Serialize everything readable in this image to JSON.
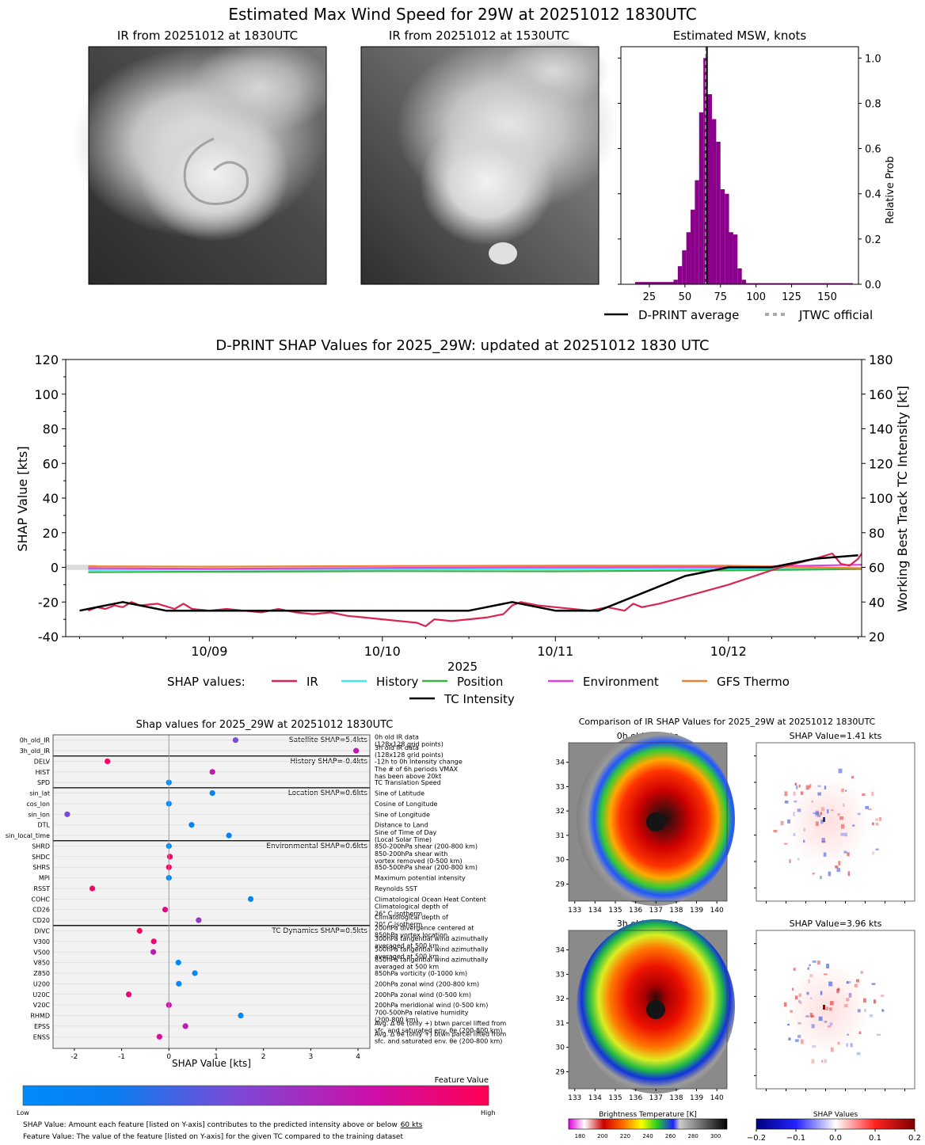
{
  "page_title": "Estimated Max Wind Speed for 29W at 20251012 1830UTC",
  "panels": {
    "ir_current_title": "IR from 20251012 at 1830UTC",
    "ir_previous_title": "IR from 20251012 at 1530UTC"
  },
  "colors": {
    "hist_bar": "#8B008B",
    "ir": "#DC2350",
    "history": "#40E8F0",
    "position": "#3CB044",
    "environment": "#E040E0",
    "gfs_thermo": "#F08030",
    "tc_intensity": "#000000",
    "jtwc": "#AAAAAA"
  },
  "chart_data": [
    {
      "type": "bar",
      "title": "Estimated MSW, knots",
      "xlabel": "",
      "ylabel": "Relative Prob",
      "xlim": [
        5,
        172
      ],
      "ylim": [
        0,
        1.05
      ],
      "xticks": [
        "25",
        "50",
        "75",
        "100",
        "125",
        "150"
      ],
      "yticks": [
        "0.0",
        "0.2",
        "0.4",
        "0.6",
        "0.8",
        "1.0"
      ],
      "bins": [
        {
          "x0": 15,
          "x1": 42,
          "v": 0.01
        },
        {
          "x0": 42,
          "x1": 45,
          "v": 0.02
        },
        {
          "x0": 45,
          "x1": 48,
          "v": 0.08
        },
        {
          "x0": 48,
          "x1": 51,
          "v": 0.15
        },
        {
          "x0": 51,
          "x1": 54,
          "v": 0.23
        },
        {
          "x0": 54,
          "x1": 57,
          "v": 0.33
        },
        {
          "x0": 57,
          "x1": 60,
          "v": 0.46
        },
        {
          "x0": 60,
          "x1": 63,
          "v": 0.76
        },
        {
          "x0": 63,
          "x1": 66,
          "v": 1.0
        },
        {
          "x0": 66,
          "x1": 69,
          "v": 0.84
        },
        {
          "x0": 69,
          "x1": 72,
          "v": 0.73
        },
        {
          "x0": 72,
          "x1": 75,
          "v": 0.63
        },
        {
          "x0": 75,
          "x1": 78,
          "v": 0.42
        },
        {
          "x0": 78,
          "x1": 81,
          "v": 0.4
        },
        {
          "x0": 81,
          "x1": 84,
          "v": 0.23
        },
        {
          "x0": 84,
          "x1": 87,
          "v": 0.22
        },
        {
          "x0": 87,
          "x1": 90,
          "v": 0.07
        },
        {
          "x0": 90,
          "x1": 93,
          "v": 0.02
        },
        {
          "x0": 93,
          "x1": 168,
          "v": 0.005
        }
      ],
      "dprint_average": 65.5,
      "jtwc_official": 65,
      "legend": [
        "D-PRINT average",
        "JTWC official"
      ]
    },
    {
      "type": "line",
      "title": "D-PRINT SHAP Values for 2025_29W: updated at 20251012 1830 UTC",
      "xlabel": "2025",
      "ylabel": "SHAP Value [kts]",
      "y2label": "Working Best Track TC Intensity [kt]",
      "xlim": [
        8.17,
        12.77
      ],
      "ylim": [
        -40,
        120
      ],
      "y2lim": [
        20,
        180
      ],
      "xticks": [
        {
          "v": 9,
          "label": "10/09"
        },
        {
          "v": 10,
          "label": "10/10"
        },
        {
          "v": 11,
          "label": "10/11"
        },
        {
          "v": 12,
          "label": "10/12"
        }
      ],
      "yticks": [
        "-40",
        "-20",
        "0",
        "20",
        "40",
        "60",
        "80",
        "100",
        "120"
      ],
      "y2ticks": [
        "20",
        "40",
        "60",
        "80",
        "100",
        "120",
        "140",
        "160",
        "180"
      ],
      "legend_prefix": "SHAP values:",
      "legend": [
        "IR",
        "History",
        "Position",
        "Environment",
        "GFS Thermo",
        "TC Intensity"
      ],
      "series": [
        {
          "name": "IR",
          "x": [
            8.3,
            8.35,
            8.4,
            8.45,
            8.5,
            8.55,
            8.6,
            8.7,
            8.8,
            8.85,
            8.9,
            9.0,
            9.1,
            9.2,
            9.3,
            9.4,
            9.5,
            9.6,
            9.7,
            9.8,
            9.9,
            10.0,
            10.1,
            10.2,
            10.25,
            10.3,
            10.4,
            10.5,
            10.6,
            10.7,
            10.75,
            10.8,
            10.9,
            11.0,
            11.1,
            11.2,
            11.3,
            11.4,
            11.45,
            11.5,
            11.55,
            11.6,
            12.0,
            12.3,
            12.5,
            12.6,
            12.65,
            12.7,
            12.75,
            12.77
          ],
          "y": [
            -25,
            -23,
            -24,
            -22,
            -23,
            -20,
            -22,
            -21,
            -24,
            -21,
            -24,
            -25,
            -24,
            -25,
            -26,
            -24,
            -26,
            -27,
            -26,
            -28,
            -29,
            -30,
            -31,
            -32,
            -34,
            -30,
            -31,
            -30,
            -29,
            -27,
            -22,
            -20,
            -22,
            -23,
            -24,
            -25,
            -23,
            -25,
            -21,
            -23,
            -22,
            -21,
            -10,
            0,
            5,
            8,
            2,
            1,
            5,
            8
          ]
        },
        {
          "name": "History",
          "x": [
            8.3,
            9.0,
            10.0,
            11.0,
            12.0,
            12.77
          ],
          "y": [
            -1.5,
            -1.3,
            -1.2,
            -1.0,
            -0.8,
            -0.5
          ]
        },
        {
          "name": "Position",
          "x": [
            8.3,
            9.0,
            10.0,
            11.0,
            12.0,
            12.77
          ],
          "y": [
            -2.8,
            -2.5,
            -2.2,
            -2.3,
            -1.8,
            -1.0
          ]
        },
        {
          "name": "Environment",
          "x": [
            8.3,
            9.0,
            10.0,
            11.0,
            12.0,
            12.77
          ],
          "y": [
            -0.5,
            -0.8,
            -0.3,
            0.0,
            0.2,
            1.5
          ]
        },
        {
          "name": "GFS Thermo",
          "x": [
            8.3,
            9.0,
            10.0,
            11.0,
            12.0,
            12.77
          ],
          "y": [
            0.6,
            0.4,
            0.8,
            1.0,
            1.0,
            -0.5
          ]
        },
        {
          "name": "TC Intensity",
          "axis": "right",
          "x": [
            8.25,
            8.5,
            8.75,
            9.0,
            9.5,
            10.0,
            10.5,
            10.75,
            11.0,
            11.25,
            11.5,
            11.75,
            12.0,
            12.25,
            12.5,
            12.75
          ],
          "y": [
            35,
            40,
            35,
            35,
            35,
            35,
            35,
            40,
            35,
            35,
            45,
            55,
            60,
            60,
            65,
            67
          ]
        }
      ]
    },
    {
      "type": "scatter",
      "title": "Shap values for 2025_29W at 20251012 1830UTC",
      "xlabel": "SHAP Value [kts]",
      "xlim": [
        -2.45,
        4.25
      ],
      "xticks": [
        "-2",
        "-1",
        "0",
        "1",
        "2",
        "3",
        "4"
      ],
      "groups": [
        {
          "label": "Satellite SHAP=5.4kts",
          "features": [
            {
              "name": "0h_old_IR",
              "shap": 1.41,
              "val": 0.45,
              "desc": "0h old IR data",
              "desc2": "(128x128 grid points)"
            },
            {
              "name": "3h_old_IR",
              "shap": 3.96,
              "val": 0.7,
              "desc": "3h old IR data",
              "desc2": "(128x128 grid points)"
            }
          ]
        },
        {
          "label": "History SHAP=-0.4kts",
          "features": [
            {
              "name": "DELV",
              "shap": -1.3,
              "val": 0.95,
              "desc": "-12h to 0h Intensity change"
            },
            {
              "name": "HIST",
              "shap": 0.92,
              "val": 0.7,
              "desc": "The # of 6h periods VMAX",
              "desc2": "has been above 20kt"
            },
            {
              "name": "SPD",
              "shap": 0.0,
              "val": 0.05,
              "desc": "TC Translation Speed"
            }
          ]
        },
        {
          "label": "Location SHAP=0.6kts",
          "features": [
            {
              "name": "sin_lat",
              "shap": 0.92,
              "val": 0.1,
              "desc": "Sine of Latitude"
            },
            {
              "name": "cos_lon",
              "shap": 0.0,
              "val": 0.05,
              "desc": "Cosine of Longitude"
            },
            {
              "name": "sin_lon",
              "shap": -2.15,
              "val": 0.45,
              "desc": "Sine of Longitude"
            },
            {
              "name": "DTL",
              "shap": 0.48,
              "val": 0.1,
              "desc": "Distance to Land"
            },
            {
              "name": "sin_local_time",
              "shap": 1.27,
              "val": 0.1,
              "desc": "Sine of Time of Day",
              "desc2": "(Local Solar Time)"
            }
          ]
        },
        {
          "label": "Environmental SHAP=0.6kts",
          "features": [
            {
              "name": "SHRD",
              "shap": 0.0,
              "val": 0.05,
              "desc": "850-200hPa shear (200-800 km)"
            },
            {
              "name": "SHDC",
              "shap": 0.02,
              "val": 0.95,
              "desc": "850-200hPa shear with",
              "desc2": "vortex removed (0-500 km)"
            },
            {
              "name": "SHRS",
              "shap": 0.0,
              "val": 0.95,
              "desc": "850-500hPa shear (200-800 km)"
            },
            {
              "name": "MPI",
              "shap": 0.0,
              "val": 0.05,
              "desc": "Maximum potential intensity"
            },
            {
              "name": "RSST",
              "shap": -1.62,
              "val": 0.95,
              "desc": "Reynolds SST"
            },
            {
              "name": "COHC",
              "shap": 1.73,
              "val": 0.05,
              "desc": "Climatological Ocean Heat Content"
            },
            {
              "name": "CD26",
              "shap": -0.08,
              "val": 0.85,
              "desc": "Climatological depth of",
              "desc2": "26° C isotherm"
            },
            {
              "name": "CD20",
              "shap": 0.63,
              "val": 0.55,
              "desc": "Climatological depth of",
              "desc2": "20° C isotherm"
            }
          ]
        },
        {
          "label": "TC Dynamics SHAP=0.5kts",
          "features": [
            {
              "name": "DIVC",
              "shap": -0.62,
              "val": 0.95,
              "desc": "200hPa divergence centered at",
              "desc2": "850hPa vortex location"
            },
            {
              "name": "V300",
              "shap": -0.32,
              "val": 0.9,
              "desc": "300hPa tangential wind azimuthally",
              "desc2": "averaged at 500 km"
            },
            {
              "name": "V500",
              "shap": -0.33,
              "val": 0.7,
              "desc": "500hPa tangential wind azimuthally",
              "desc2": "averaged at 500 km"
            },
            {
              "name": "V850",
              "shap": 0.2,
              "val": 0.05,
              "desc": "850hPa tangential wind azimuthally",
              "desc2": "averaged at 500 km"
            },
            {
              "name": "Z850",
              "shap": 0.55,
              "val": 0.05,
              "desc": "850hPa vorticity (0-1000 km)"
            },
            {
              "name": "U200",
              "shap": 0.21,
              "val": 0.05,
              "desc": "200hPa zonal wind (200-800 km)"
            },
            {
              "name": "U20C",
              "shap": -0.85,
              "val": 0.9,
              "desc": "200hPa zonal wind (0-500 km)"
            },
            {
              "name": "V20C",
              "shap": 0.0,
              "val": 0.75,
              "desc": "200hPa meridional wind (0-500 km)"
            },
            {
              "name": "RHMD",
              "shap": 1.52,
              "val": 0.05,
              "desc": "700-500hPa relative humidity",
              "desc2": "(200-800 km)"
            },
            {
              "name": "EPSS",
              "shap": 0.35,
              "val": 0.7,
              "desc": "Avg. Δ θe (only +) btwn parcel lifted from",
              "desc2": "sfc. and saturated env. θe (200-800 km)"
            },
            {
              "name": "ENSS",
              "shap": -0.2,
              "val": 0.8,
              "desc": "Avg. Δ θe (only +) btwn parcel lifted from",
              "desc2": "sfc. and saturated env. θe (200-800 km)"
            }
          ]
        }
      ],
      "colorbar_title": "Feature Value",
      "colorbar_low": "Low",
      "colorbar_high": "High",
      "footnote1": "SHAP Value: Amount each feature [listed on Y-axis] contributes to the predicted intensity above or below",
      "footnote1_underlined": "60 kts",
      "footnote2": "Feature Value: The value of the feature [listed on Y-axis] for the given TC compared to the training dataset"
    },
    {
      "type": "heatmap",
      "title": "Comparison of IR SHAP Values for 2025_29W at 20251012 1830UTC",
      "ir_titles": [
        "0h old IR Data",
        "3h old IR Data"
      ],
      "shap_titles": [
        "SHAP Value=1.41 kts",
        "SHAP Value=3.96 kts"
      ],
      "lon_ticks": [
        "133",
        "134",
        "135",
        "136",
        "137",
        "138",
        "139",
        "140"
      ],
      "lat_ticks": [
        "29",
        "30",
        "31",
        "32",
        "33",
        "34"
      ],
      "bt_colorbar": {
        "title": "Brightness Temperature [K]",
        "ticks": [
          "180",
          "200",
          "220",
          "240",
          "260",
          "280",
          "300"
        ]
      },
      "shap_colorbar": {
        "title": "SHAP Values",
        "ticks": [
          "−0.2",
          "−0.1",
          "0.0",
          "0.1",
          "0.2"
        ]
      }
    }
  ]
}
